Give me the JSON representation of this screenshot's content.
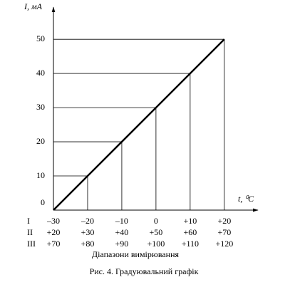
{
  "chart_data": {
    "type": "line",
    "y_label": "I, мА",
    "x_label": "t, ⁰C",
    "x": [
      -30,
      -20,
      -10,
      0,
      10,
      20
    ],
    "series": [
      {
        "name": "I",
        "color": "#000000",
        "values": [
          0,
          10,
          20,
          30,
          40,
          50
        ]
      }
    ],
    "xlim": [
      -30,
      29
    ],
    "ylim": [
      0,
      59
    ],
    "yticks": [
      0,
      10,
      20,
      30,
      40,
      50
    ],
    "xticks": [
      {
        "value": -30,
        "label": "–30"
      },
      {
        "value": -20,
        "label": "–20"
      },
      {
        "value": -10,
        "label": "–10"
      },
      0,
      {
        "value": 10,
        "label": "+10"
      },
      {
        "value": 20,
        "label": "+20"
      }
    ],
    "xticks_row_name": "I",
    "scale_rows": [
      {
        "name": "II",
        "labels": [
          "+20",
          "+30",
          "+40",
          "+50",
          "+60",
          "+70"
        ]
      },
      {
        "name": "III",
        "labels": [
          "+70",
          "+80",
          "+90",
          "+100",
          "+110",
          "+120"
        ]
      }
    ],
    "ranges_label": "Діапазони вимірювання",
    "caption": "Рис. 4. Градуювальний графік",
    "guides": true
  }
}
